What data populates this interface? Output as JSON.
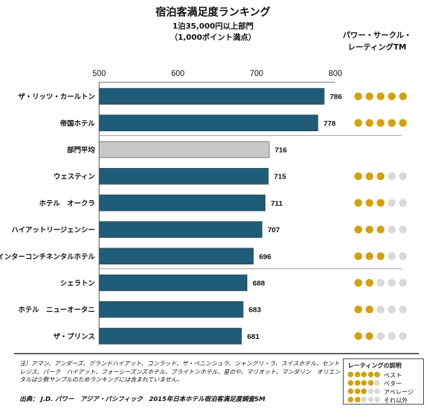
{
  "header": {
    "title": "宿泊客満足度ランキング",
    "subtitle1": "1泊35,000円以上部門",
    "subtitle2": "（1,000ポイント満点）",
    "power_circle_title_line1": "パワー・サークル・",
    "power_circle_title_line2": "レーティングTM"
  },
  "chart_data": {
    "type": "bar",
    "orientation": "horizontal",
    "xlim": [
      500,
      800
    ],
    "xticks": [
      500,
      600,
      700,
      800
    ],
    "categories": [
      "ザ・リッツ・カールトン",
      "帝国ホテル",
      "部門平均",
      "ウェスティン",
      "ホテル　オークラ",
      "ハイアットリージェンシー",
      "インターコンチネンタルホテル",
      "シェラトン",
      "ホテル　ニューオータニ",
      "ザ・プリンス"
    ],
    "values": [
      786,
      778,
      716,
      715,
      711,
      707,
      696,
      688,
      683,
      681
    ],
    "ratings": [
      5,
      5,
      null,
      3,
      3,
      3,
      3,
      2,
      2,
      2
    ],
    "highlight_index": 2,
    "colors": {
      "bar": "#1f5c77",
      "average_bar": "#c8c8c8",
      "dot_on": "#d4a00c",
      "dot_off": "#d9d9d9",
      "separator": "#999999"
    }
  },
  "notes": "注）アマン、アンダーズ、グランドハイアット、コンラッド、ザ・ペニンシュラ、シャングリ・ラ、スイスホテル、セントレジス、パーク　ハイアット、フォーシーズンズホテル、ブライトンホテル、星のや、マリオット、マンダリン　オリエンタルは少数サンプルのためランキングには含まれていません。",
  "source": "出典： J.D. パワー　アジア・パシフィック　2015年日本ホテル宿泊客満足度調査SM",
  "legend": {
    "title": "レーティングの説明",
    "items": [
      {
        "dots": 5,
        "label": "ベスト"
      },
      {
        "dots": 4,
        "label": "ベター"
      },
      {
        "dots": 3,
        "label": "アベレージ"
      },
      {
        "dots": 2,
        "label": "それ以外"
      }
    ]
  }
}
